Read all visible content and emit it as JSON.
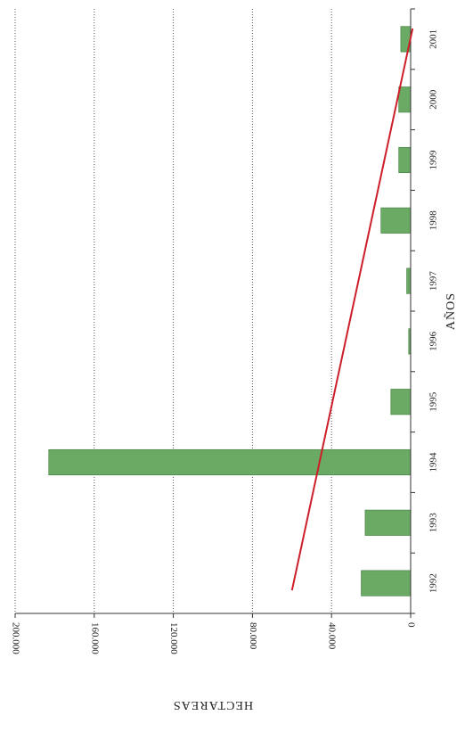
{
  "chart_data": {
    "type": "bar",
    "orientation": "horizontal-bars (page rotated 90°)",
    "categories": [
      "1992",
      "1993",
      "1994",
      "1995",
      "1996",
      "1997",
      "1998",
      "1999",
      "2000",
      "2001"
    ],
    "values": [
      25000,
      23000,
      183000,
      10000,
      1000,
      2000,
      15000,
      6000,
      6000,
      5000
    ],
    "value_tick_labels": [
      "0",
      "40.000",
      "80.000",
      "120.000",
      "160.000",
      "200.000"
    ],
    "xlabel": "AÑOS",
    "ylabel": "HECTAREAS",
    "ylim": [
      0,
      200000
    ],
    "grid": true,
    "bar_color": "#6aaa64",
    "trend_color": "#cc1f2a",
    "trendline": {
      "start": 60000,
      "end": -1000
    }
  }
}
